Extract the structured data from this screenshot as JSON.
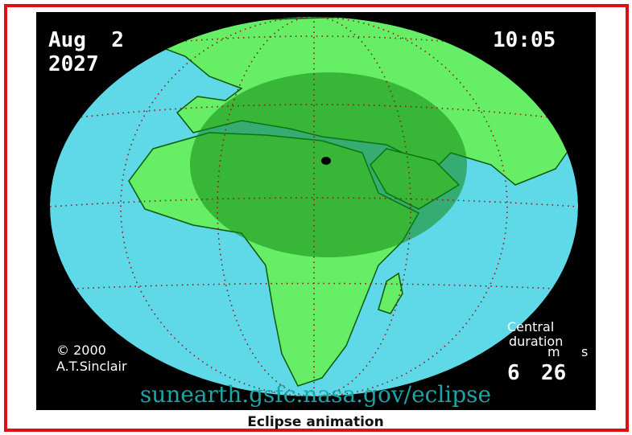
{
  "date": {
    "month_day": "Aug  2",
    "year": "2027"
  },
  "time": "10:05",
  "credit": {
    "copyright": "© 2000",
    "author": "A.T.Sinclair"
  },
  "duration": {
    "label_1": "Central",
    "label_2": "duration",
    "unit_minutes": "m",
    "unit_seconds": "s",
    "minutes": "6",
    "seconds": "26"
  },
  "url": "sunearth.gsfc.nasa.gov/eclipse",
  "caption": "Eclipse animation"
}
